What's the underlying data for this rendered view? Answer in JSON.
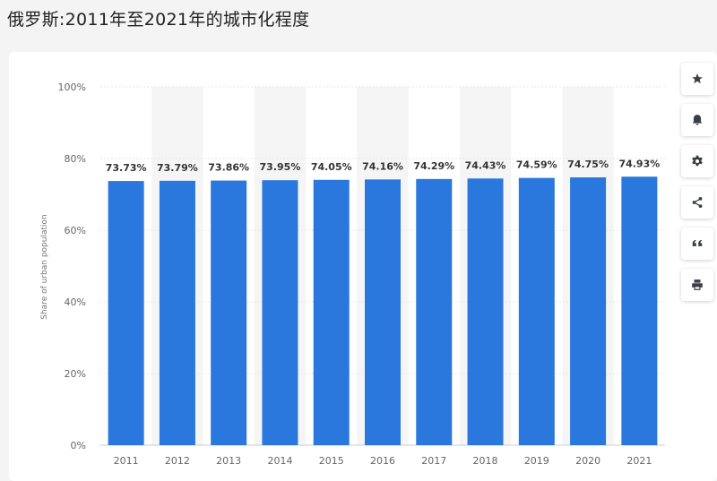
{
  "page": {
    "title": "俄罗斯:2011年至2021年的城市化程度"
  },
  "toolbar": {
    "buttons": [
      {
        "name": "star-icon"
      },
      {
        "name": "bell-icon"
      },
      {
        "name": "gear-icon"
      },
      {
        "name": "share-icon"
      },
      {
        "name": "quote-icon"
      },
      {
        "name": "print-icon"
      }
    ]
  },
  "colors": {
    "bar": "#2a77dd",
    "band": "#f5f5f5",
    "grid": "#e6e6e6",
    "axis_text": "#666666",
    "label_text": "#333333",
    "icon": "#3a3f47"
  },
  "chart_data": {
    "type": "bar",
    "categories": [
      "2011",
      "2012",
      "2013",
      "2014",
      "2015",
      "2016",
      "2017",
      "2018",
      "2019",
      "2020",
      "2021"
    ],
    "values": [
      73.73,
      73.79,
      73.86,
      73.95,
      74.05,
      74.16,
      74.29,
      74.43,
      74.59,
      74.75,
      74.93
    ],
    "data_labels": [
      "73.73%",
      "73.79%",
      "73.86%",
      "73.95%",
      "74.05%",
      "74.16%",
      "74.29%",
      "74.43%",
      "74.59%",
      "74.75%",
      "74.93%"
    ],
    "ylabel": "Share of urban population",
    "ylim": [
      0,
      100
    ],
    "yticks": [
      0,
      20,
      40,
      60,
      80,
      100
    ],
    "ytick_labels": [
      "0%",
      "20%",
      "40%",
      "60%",
      "80%",
      "100%"
    ],
    "grid": true,
    "alternating_bands": true
  }
}
